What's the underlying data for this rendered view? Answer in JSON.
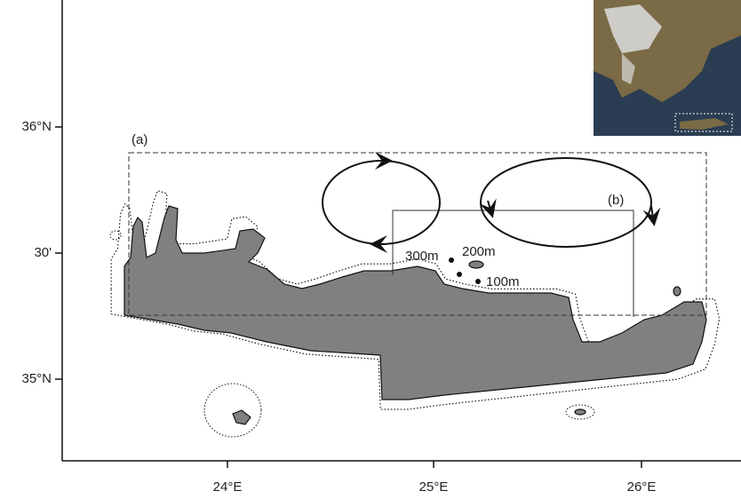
{
  "axes": {
    "y_ticks": [
      "36°N",
      "30'",
      "35°N"
    ],
    "x_ticks": [
      "24°E",
      "25°E",
      "26°E"
    ]
  },
  "regions": {
    "a": "(a)",
    "b": "(b)"
  },
  "stations": [
    "300m",
    "200m",
    "100m"
  ]
}
